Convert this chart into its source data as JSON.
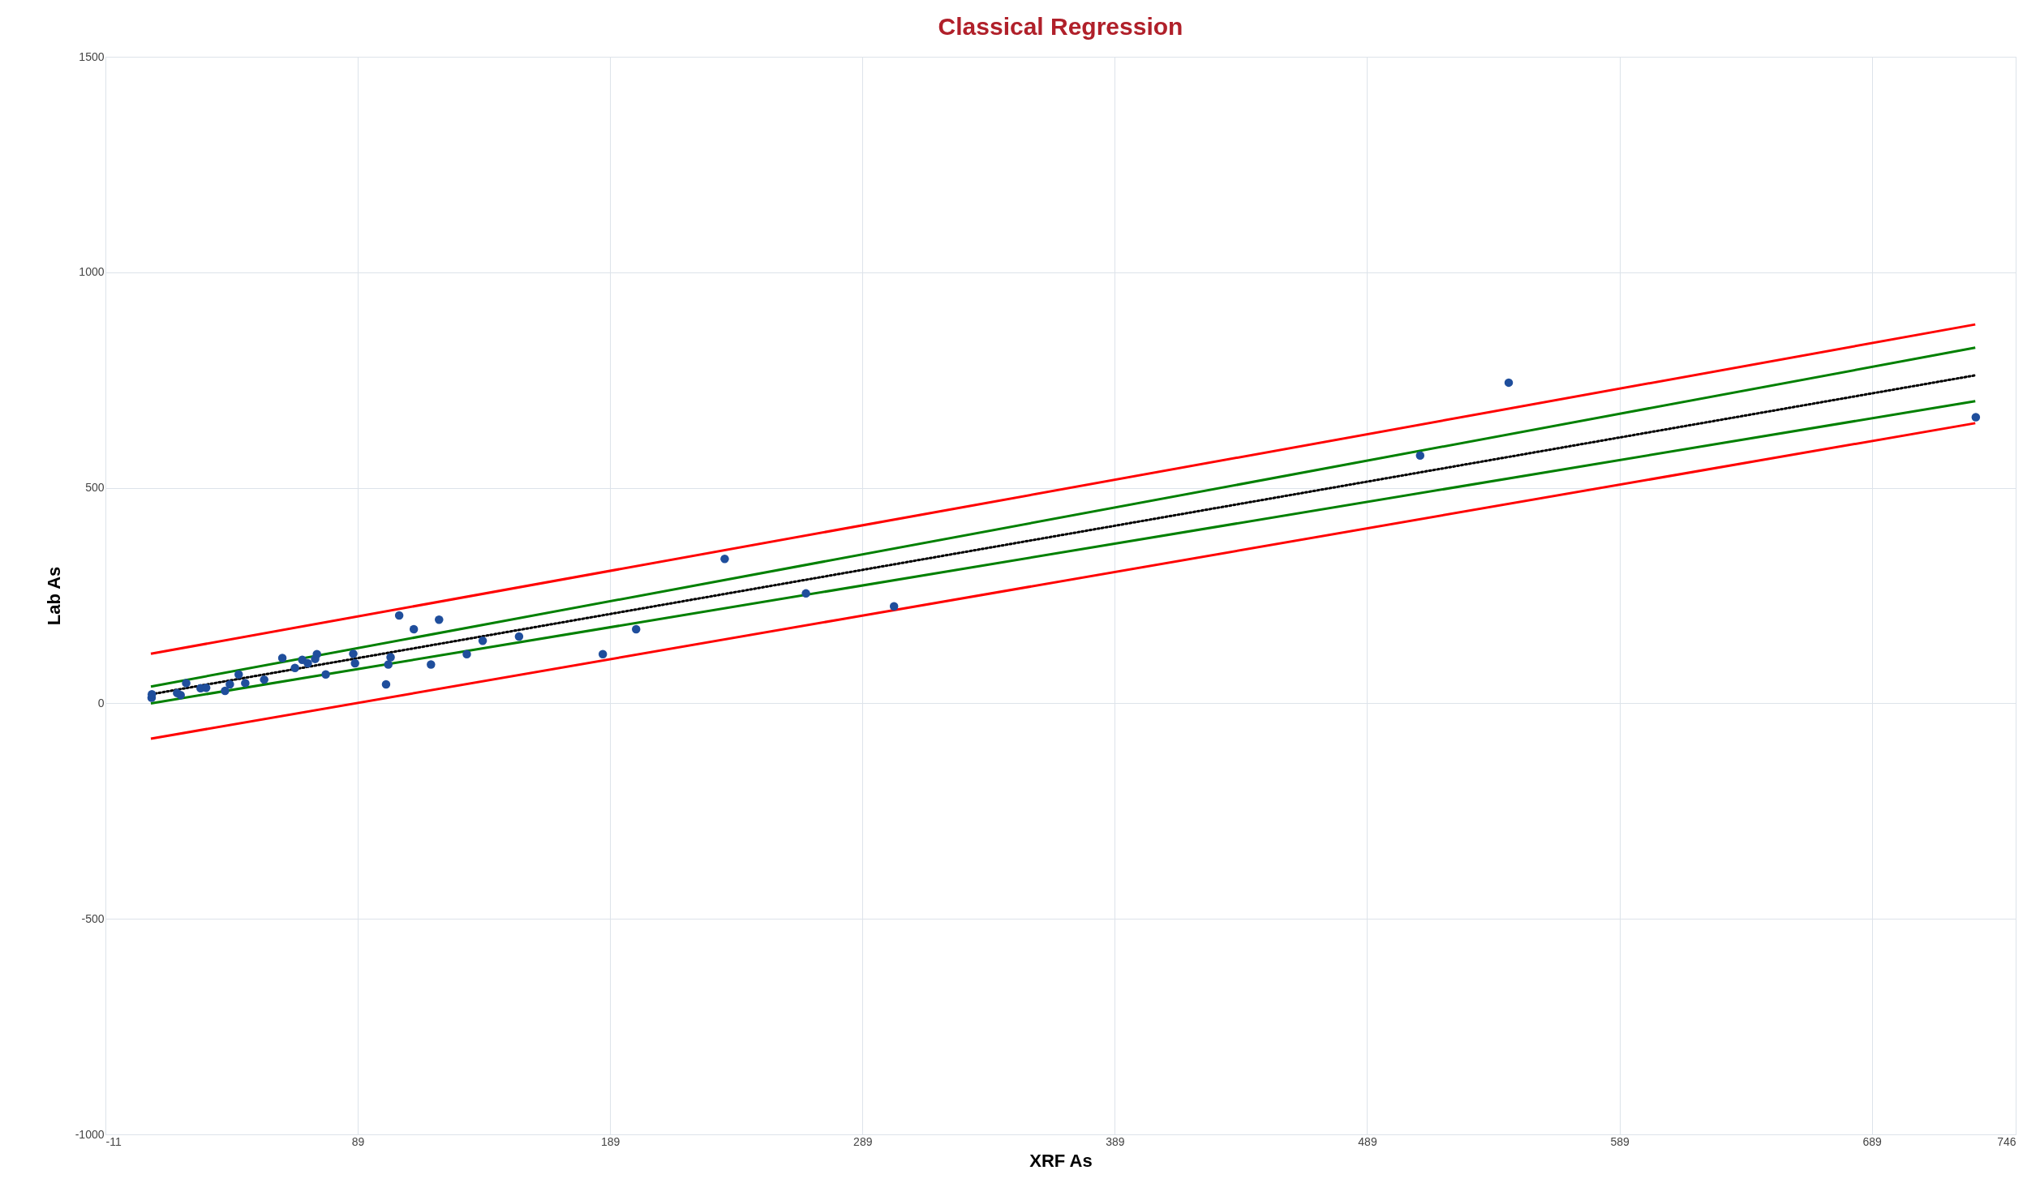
{
  "chart_data": {
    "type": "scatter",
    "title": "Classical Regression",
    "xlabel": "XRF As",
    "ylabel": "Lab As",
    "xlim": [
      -11,
      746
    ],
    "xticks": [
      -11,
      89,
      189,
      289,
      389,
      489,
      589,
      689,
      746
    ],
    "ylim": [
      -1000,
      1500
    ],
    "yticks": [
      -1000,
      -500,
      0,
      500,
      1000,
      1500
    ],
    "grid": true,
    "series": [
      {
        "type": "line",
        "color": "#ff0000",
        "line_style": "solid",
        "x": [
          7,
          730
        ],
        "values": [
          115,
          879
        ]
      },
      {
        "type": "line",
        "color": "#ff0000",
        "line_style": "solid",
        "x": [
          7,
          730
        ],
        "values": [
          -82,
          650
        ]
      },
      {
        "type": "line",
        "color": "#008000",
        "line_style": "solid",
        "x": [
          7,
          730
        ],
        "values": [
          39,
          825
        ]
      },
      {
        "type": "line",
        "color": "#008000",
        "line_style": "solid",
        "x": [
          7,
          730
        ],
        "values": [
          0,
          701
        ]
      },
      {
        "type": "line",
        "color": "#000000",
        "line_style": "dotted",
        "x": [
          7,
          730
        ],
        "values": [
          21,
          761
        ]
      },
      {
        "color": "#1f4e9c",
        "marker": "circle",
        "x": [
          7.3,
          7.4,
          17.4,
          18.8,
          21,
          26.7,
          28.9,
          36.4,
          38.3,
          41.8,
          44.4,
          51.9,
          59.1,
          64.1,
          67,
          69.2,
          72.8,
          72.1,
          76.3,
          87.2,
          87.9,
          100.2,
          101.1,
          102,
          105.4,
          111.2,
          118,
          121.2,
          132.2,
          138.5,
          152.9,
          186.1,
          199.3,
          234.4,
          266.6,
          301.5,
          510,
          545.1,
          730.2
        ],
        "values": [
          13,
          21,
          24,
          19,
          47,
          35,
          36,
          29,
          44,
          67,
          47,
          55,
          105,
          82,
          101,
          93,
          114,
          103,
          67,
          115,
          93,
          44,
          90,
          107,
          204,
          172,
          90,
          194,
          114,
          145,
          155,
          114,
          172,
          335,
          255,
          225,
          575,
          744,
          664
        ]
      }
    ]
  }
}
